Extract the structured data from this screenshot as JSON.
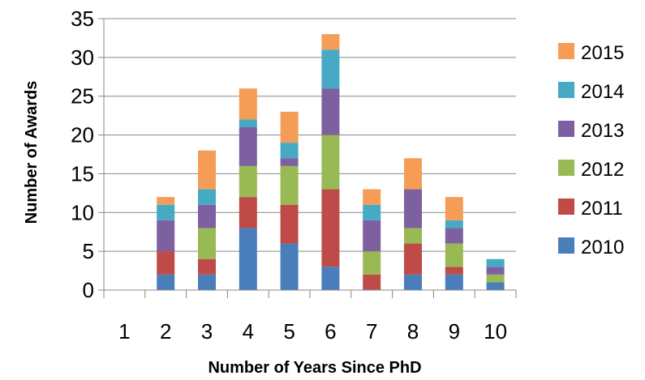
{
  "chart_data": {
    "type": "bar",
    "stacked": true,
    "categories": [
      "1",
      "2",
      "3",
      "4",
      "5",
      "6",
      "7",
      "8",
      "9",
      "10"
    ],
    "series": [
      {
        "name": "2010",
        "color": "#4a7ebb",
        "values": [
          0,
          2,
          2,
          8,
          6,
          3,
          0,
          2,
          2,
          1
        ]
      },
      {
        "name": "2011",
        "color": "#be4b48",
        "values": [
          0,
          3,
          2,
          4,
          5,
          10,
          2,
          4,
          1,
          0
        ]
      },
      {
        "name": "2012",
        "color": "#98b954",
        "values": [
          0,
          0,
          4,
          4,
          5,
          7,
          3,
          2,
          3,
          1
        ]
      },
      {
        "name": "2013",
        "color": "#7d60a0",
        "values": [
          0,
          4,
          3,
          5,
          1,
          6,
          4,
          5,
          2,
          1
        ]
      },
      {
        "name": "2014",
        "color": "#46aac5",
        "values": [
          0,
          2,
          2,
          1,
          2,
          5,
          2,
          0,
          1,
          1
        ]
      },
      {
        "name": "2015",
        "color": "#f59d56",
        "values": [
          0,
          1,
          5,
          4,
          4,
          2,
          2,
          4,
          3,
          0
        ]
      }
    ],
    "title": "",
    "xlabel": "Number of Years Since PhD",
    "ylabel": "Number of Awards",
    "ylim": [
      0,
      35
    ],
    "yticks": [
      0,
      5,
      10,
      15,
      20,
      25,
      30,
      35
    ],
    "grid": "horizontal",
    "legend_position": "right",
    "legend_order": [
      "2015",
      "2014",
      "2013",
      "2012",
      "2011",
      "2010"
    ]
  }
}
